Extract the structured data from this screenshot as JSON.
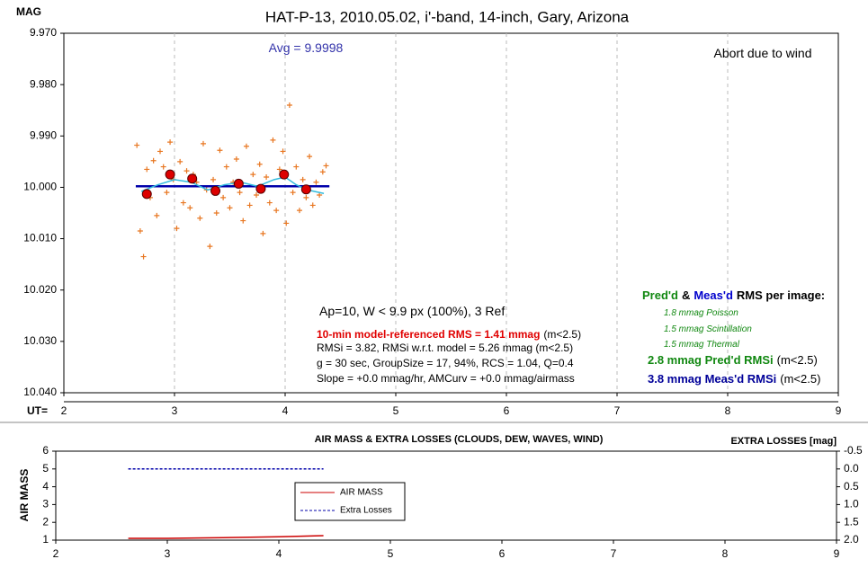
{
  "chart_data": [
    {
      "type": "scatter",
      "title": "HAT-P-13, 2010.05.02, i'-band, 14-inch, Gary, Arizona",
      "ylabel": "MAG",
      "xlabel": "UT=",
      "xlim": [
        2,
        9
      ],
      "xticks": [
        2,
        3,
        4,
        5,
        6,
        7,
        8,
        9
      ],
      "xgrid": true,
      "ylim": [
        10.04,
        9.97
      ],
      "yticks": [
        {
          "value": 9.97,
          "label": "9.970"
        },
        {
          "value": 9.98,
          "label": "9.980"
        },
        {
          "value": 9.99,
          "label": "9.990"
        },
        {
          "value": 10,
          "label": "10.000"
        },
        {
          "value": 10.01,
          "label": "10.010"
        },
        {
          "value": 10.02,
          "label": "10.020"
        },
        {
          "value": 10.03,
          "label": "10.030"
        },
        {
          "value": 10.04,
          "label": "10.040"
        }
      ],
      "series": [
        {
          "color": "#e87722",
          "marker": "plus",
          "x": [
            2.66,
            2.69,
            2.72,
            2.75,
            2.78,
            2.81,
            2.84,
            2.87,
            2.9,
            2.93,
            2.96,
            2.99,
            3.02,
            3.05,
            3.08,
            3.11,
            3.14,
            3.17,
            3.2,
            3.23,
            3.26,
            3.29,
            3.32,
            3.35,
            3.38,
            3.41,
            3.44,
            3.47,
            3.5,
            3.53,
            3.56,
            3.59,
            3.62,
            3.65,
            3.68,
            3.71,
            3.74,
            3.77,
            3.8,
            3.83,
            3.86,
            3.89,
            3.92,
            3.95,
            3.98,
            4.01,
            4.04,
            4.07,
            4.1,
            4.13,
            4.16,
            4.19,
            4.22,
            4.25,
            4.28,
            4.31,
            4.34,
            4.37
          ],
          "values": [
            9.9918,
            10.0085,
            10.0135,
            9.9965,
            10.002,
            9.9948,
            10.0055,
            9.993,
            9.996,
            10.001,
            9.9912,
            9.9985,
            10.008,
            9.995,
            10.003,
            9.9968,
            10.004,
            9.9975,
            9.999,
            10.006,
            9.9915,
            10.0005,
            10.0115,
            9.9985,
            10.005,
            9.9928,
            10.002,
            9.996,
            10.004,
            9.999,
            9.9945,
            10.001,
            10.0065,
            9.992,
            10.0035,
            9.9975,
            10.0015,
            9.9955,
            10.009,
            9.998,
            10.003,
            9.9908,
            10.0045,
            9.9965,
            9.993,
            10.007,
            9.984,
            10.001,
            9.996,
            10.0045,
            9.9985,
            10.002,
            9.994,
            10.0035,
            9.999,
            10.0015,
            9.997,
            9.9958
          ]
        },
        {
          "color": "#0000aa",
          "marker": "line",
          "x": [
            2.65,
            4.4
          ],
          "values": [
            9.9998,
            9.9998
          ]
        },
        {
          "color": "#33bbdd",
          "marker": "line",
          "x": [
            2.7,
            2.85,
            3.0,
            3.15,
            3.3,
            3.45,
            3.6,
            3.75,
            3.9,
            4.0,
            4.1,
            4.2,
            4.35
          ],
          "values": [
            10.0008,
            9.9995,
            9.9985,
            9.999,
            10.0005,
            9.9995,
            9.999,
            9.9998,
            9.9985,
            9.998,
            9.9995,
            10.0005,
            10.0012
          ]
        },
        {
          "color": "#dd0000",
          "marker": "circle",
          "x": [
            2.75,
            2.96,
            3.16,
            3.37,
            3.58,
            3.78,
            3.99,
            4.19
          ],
          "values": [
            10.0013,
            9.9975,
            9.9983,
            10.0007,
            9.9993,
            10.0003,
            9.9975,
            10.0004
          ]
        }
      ],
      "annotations": [
        [
          {
            "text": "Avg = 9.9998",
            "color": "#3333aa"
          }
        ],
        [
          {
            "text": "Abort due to wind",
            "color": "#000000"
          }
        ],
        [
          {
            "text": "Ap=10, W < 9.9 px (100%), 3 Ref",
            "color": "#000000"
          }
        ],
        [
          {
            "text": "10-min model-referenced RMS = 1.41 mmag",
            "color": "#e00000",
            "bold": true
          },
          {
            "text": "(m<2.5)",
            "color": "#000000"
          }
        ],
        [
          {
            "text": "RMSi = 3.82, RMSi w.r.t. model = 5.26 mmag (m<2.5)",
            "color": "#000000"
          }
        ],
        [
          {
            "text": "g = 30 sec, GroupSize = 17, 94%, RCS = 1.04, Q=0.4",
            "color": "#000000"
          }
        ],
        [
          {
            "text": "Slope = +0.0 mmag/hr, AMCurv = +0.0 mmag/airmass",
            "color": "#000000"
          }
        ],
        [
          {
            "text": "Pred'd",
            "color": "#118811",
            "bold": true
          },
          {
            "text": "&",
            "color": "#000000",
            "bold": true
          },
          {
            "text": "Meas'd",
            "color": "#0000cc",
            "bold": true
          },
          {
            "text": "RMS per image:",
            "color": "#000000",
            "bold": true
          }
        ],
        [
          {
            "text": "1.8 mmag Poisson",
            "color": "#118811",
            "italic": true
          }
        ],
        [
          {
            "text": "1.5 mmag Scintillation",
            "color": "#118811",
            "italic": true
          }
        ],
        [
          {
            "text": "1.5 mmag Thermal",
            "color": "#118811",
            "italic": true
          }
        ],
        [
          {
            "text": "2.8 mmag Pred'd  RMSi",
            "color": "#118811",
            "bold": true
          },
          {
            "text": "(m<2.5)",
            "color": "#000000"
          }
        ],
        [
          {
            "text": "3.8 mmag Meas'd RMSi",
            "color": "#000099",
            "bold": true
          },
          {
            "text": "(m<2.5)",
            "color": "#000000"
          }
        ]
      ]
    },
    {
      "type": "line",
      "title": "AIR MASS & EXTRA LOSSES (CLOUDS, DEW, WAVES, WIND)",
      "ylabel": "AIR MASS",
      "y2label": "EXTRA LOSSES [mag]",
      "xlim": [
        2,
        9
      ],
      "xticks": [
        2,
        3,
        4,
        5,
        6,
        7,
        8,
        9
      ],
      "ylim": [
        1,
        6
      ],
      "yticks": [
        1,
        2,
        3,
        4,
        5,
        6
      ],
      "y2lim": [
        2.0,
        -0.5
      ],
      "y2ticks": [
        {
          "value": -0.5,
          "label": "-0.5"
        },
        {
          "value": 0,
          "label": "0.0"
        },
        {
          "value": 0.5,
          "label": "0.5"
        },
        {
          "value": 1,
          "label": "1.0"
        },
        {
          "value": 1.5,
          "label": "1.5"
        },
        {
          "value": 2,
          "label": "2.0"
        }
      ],
      "legend": "center",
      "series": [
        {
          "name": "AIR MASS",
          "color": "#cc0000",
          "x": [
            2.65,
            3.0,
            3.5,
            4.0,
            4.4
          ],
          "values": [
            1.1,
            1.1,
            1.14,
            1.19,
            1.25
          ]
        },
        {
          "name": "Extra Losses",
          "color": "#0000aa",
          "dashed": true,
          "axis": "y2",
          "x": [
            2.65,
            4.4
          ],
          "values": [
            0,
            0
          ]
        }
      ]
    }
  ]
}
